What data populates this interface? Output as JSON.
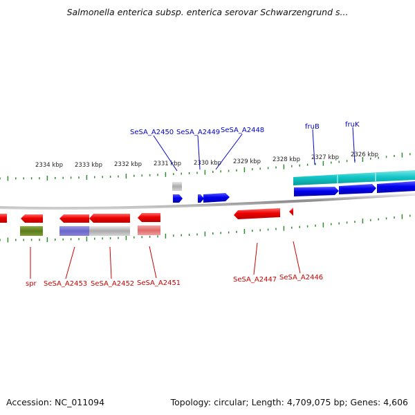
{
  "title": "Salmonella enterica subsp. enterica serovar Schwarzengrund s...",
  "accession": "Accession: NC_011094",
  "summary": "Topology: circular; Length: 4,709,075 bp; Genes: 4,606",
  "colors": {
    "forward_label": "#0000cc",
    "reverse_label": "#cc0000",
    "forward_cds": "#0000ee",
    "reverse_cds": "#ee0000",
    "tick": "#2e8b2e",
    "backbone": "#888888",
    "rna": "#aaaaaa"
  },
  "ticks": [
    {
      "label": "2334 kbp"
    },
    {
      "label": "2333 kbp"
    },
    {
      "label": "2332 kbp"
    },
    {
      "label": "2331 kbp"
    },
    {
      "label": "2330 kbp"
    },
    {
      "label": "2329 kbp"
    },
    {
      "label": "2328 kbp"
    },
    {
      "label": "2327 kbp"
    },
    {
      "label": "2326 kbp"
    }
  ],
  "forward_genes": [
    {
      "label": "SeSA_A2450"
    },
    {
      "label": "SeSA_A2449"
    },
    {
      "label": "SeSA_A2448"
    },
    {
      "label": "fruB"
    },
    {
      "label": "fruK"
    }
  ],
  "reverse_genes": [
    {
      "label": "spr"
    },
    {
      "label": "SeSA_A2453"
    },
    {
      "label": "SeSA_A2452"
    },
    {
      "label": "SeSA_A2451"
    },
    {
      "label": "SeSA_A2447"
    },
    {
      "label": "SeSA_A2446"
    }
  ]
}
